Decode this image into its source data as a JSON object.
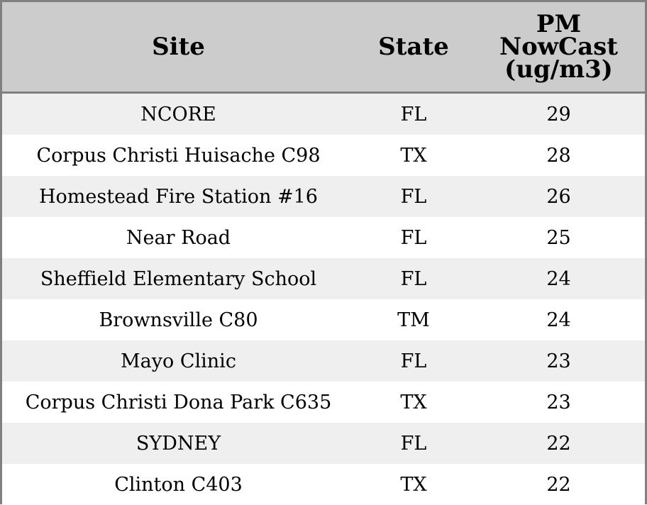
{
  "table": {
    "headers": {
      "site": "Site",
      "state": "State",
      "pm_lines": [
        "PM",
        "NowCast",
        "(ug/m3)"
      ]
    },
    "rows": [
      {
        "site": "NCORE",
        "state": "FL",
        "pm": "29"
      },
      {
        "site": "Corpus Christi Huisache C98",
        "state": "TX",
        "pm": "28"
      },
      {
        "site": "Homestead Fire Station #16",
        "state": "FL",
        "pm": "26"
      },
      {
        "site": "Near Road",
        "state": "FL",
        "pm": "25"
      },
      {
        "site": "Sheffield Elementary School",
        "state": "FL",
        "pm": "24"
      },
      {
        "site": "Brownsville C80",
        "state": "TM",
        "pm": "24"
      },
      {
        "site": "Mayo Clinic",
        "state": "FL",
        "pm": "23"
      },
      {
        "site": "Corpus Christi Dona Park C635",
        "state": "TX",
        "pm": "23"
      },
      {
        "site": "SYDNEY",
        "state": "FL",
        "pm": "22"
      },
      {
        "site": "Clinton C403",
        "state": "TX",
        "pm": "22"
      }
    ]
  },
  "colors": {
    "header_bg": "#cccccc",
    "row_alt_bg": "#efefef",
    "row_bg": "#ffffff",
    "border": "#808080"
  }
}
